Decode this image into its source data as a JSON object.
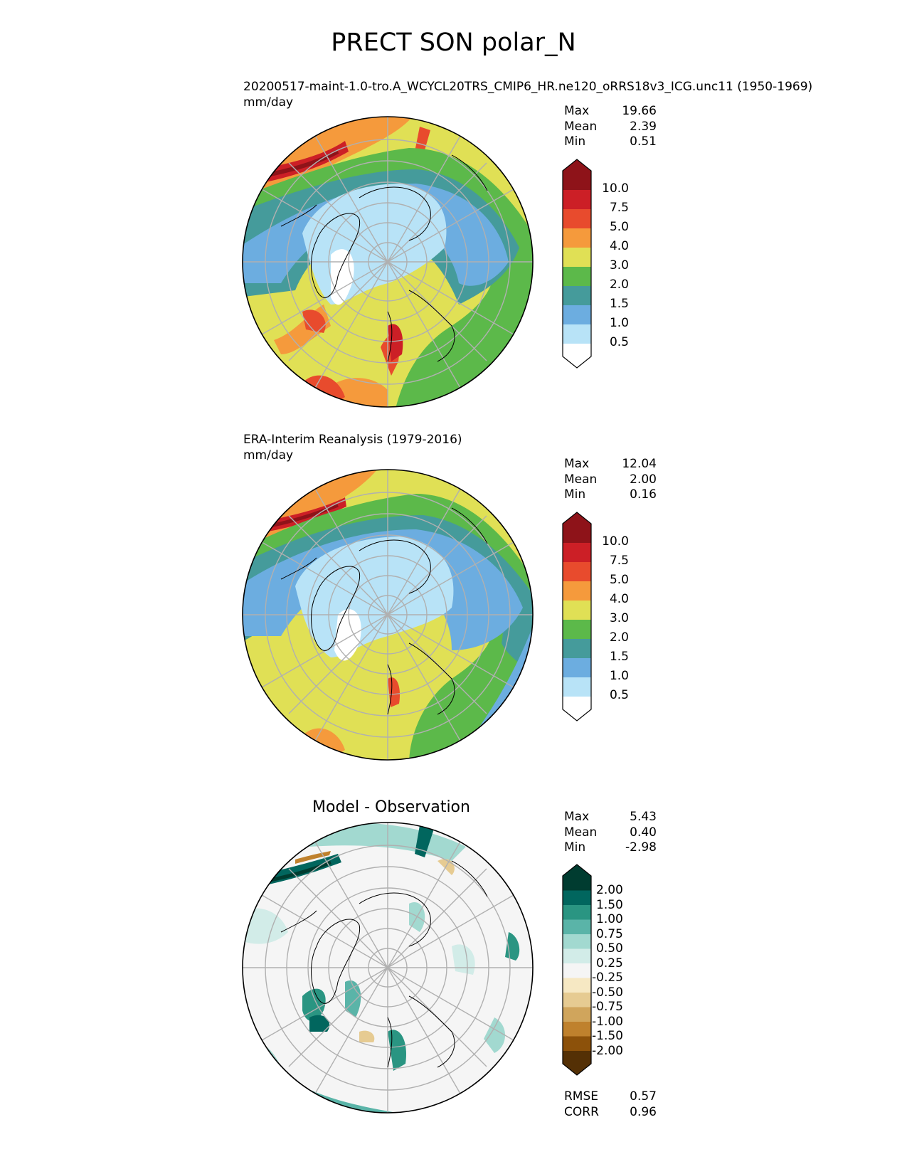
{
  "figure": {
    "title": "PRECT SON polar_N"
  },
  "colors": {
    "precip_levels": [
      "#ffffff",
      "#b8e3f7",
      "#6cade0",
      "#459b9b",
      "#5cb94a",
      "#e0e055",
      "#f59a3c",
      "#e84b2d",
      "#cc1f26",
      "#8e1319"
    ],
    "diff_levels": [
      "#543005",
      "#8c510a",
      "#bf812d",
      "#d0a55c",
      "#e6cb92",
      "#f6e8c3",
      "#f5f5f5",
      "#d2ece8",
      "#a2d9d0",
      "#5ab4a8",
      "#2a9582",
      "#01665e",
      "#003c30"
    ],
    "land_outline": "#000000",
    "grid": "#b0b0b0"
  },
  "panels": [
    {
      "title": "20200517-maint-1.0-tro.A_WCYCL20TRS_CMIP6_HR.ne120_oRRS18v3_ICG.unc11 (1950-1969)",
      "units": "mm/day",
      "stats": [
        {
          "label": "Max",
          "value": "19.66"
        },
        {
          "label": "Mean",
          "value": "2.39"
        },
        {
          "label": "Min",
          "value": "0.51"
        }
      ],
      "colorbar_ticks": [
        "10.0",
        "7.5",
        "5.0",
        "4.0",
        "3.0",
        "2.0",
        "1.5",
        "1.0",
        "0.5"
      ]
    },
    {
      "title": "ERA-Interim Reanalysis (1979-2016)",
      "units": "mm/day",
      "stats": [
        {
          "label": "Max",
          "value": "12.04"
        },
        {
          "label": "Mean",
          "value": "2.00"
        },
        {
          "label": "Min",
          "value": "0.16"
        }
      ],
      "colorbar_ticks": [
        "10.0",
        "7.5",
        "5.0",
        "4.0",
        "3.0",
        "2.0",
        "1.5",
        "1.0",
        "0.5"
      ]
    },
    {
      "title": "Model - Observation",
      "stats": [
        {
          "label": "Max",
          "value": "5.43"
        },
        {
          "label": "Mean",
          "value": "0.40"
        },
        {
          "label": "Min",
          "value": "-2.98"
        }
      ],
      "colorbar_ticks": [
        "2.00",
        "1.50",
        "1.00",
        "0.75",
        "0.50",
        "0.25",
        "-0.25",
        "-0.50",
        "-0.75",
        "-1.00",
        "-1.50",
        "-2.00"
      ],
      "metrics": [
        {
          "label": "RMSE",
          "value": "0.57"
        },
        {
          "label": "CORR",
          "value": "0.96"
        }
      ]
    }
  ]
}
